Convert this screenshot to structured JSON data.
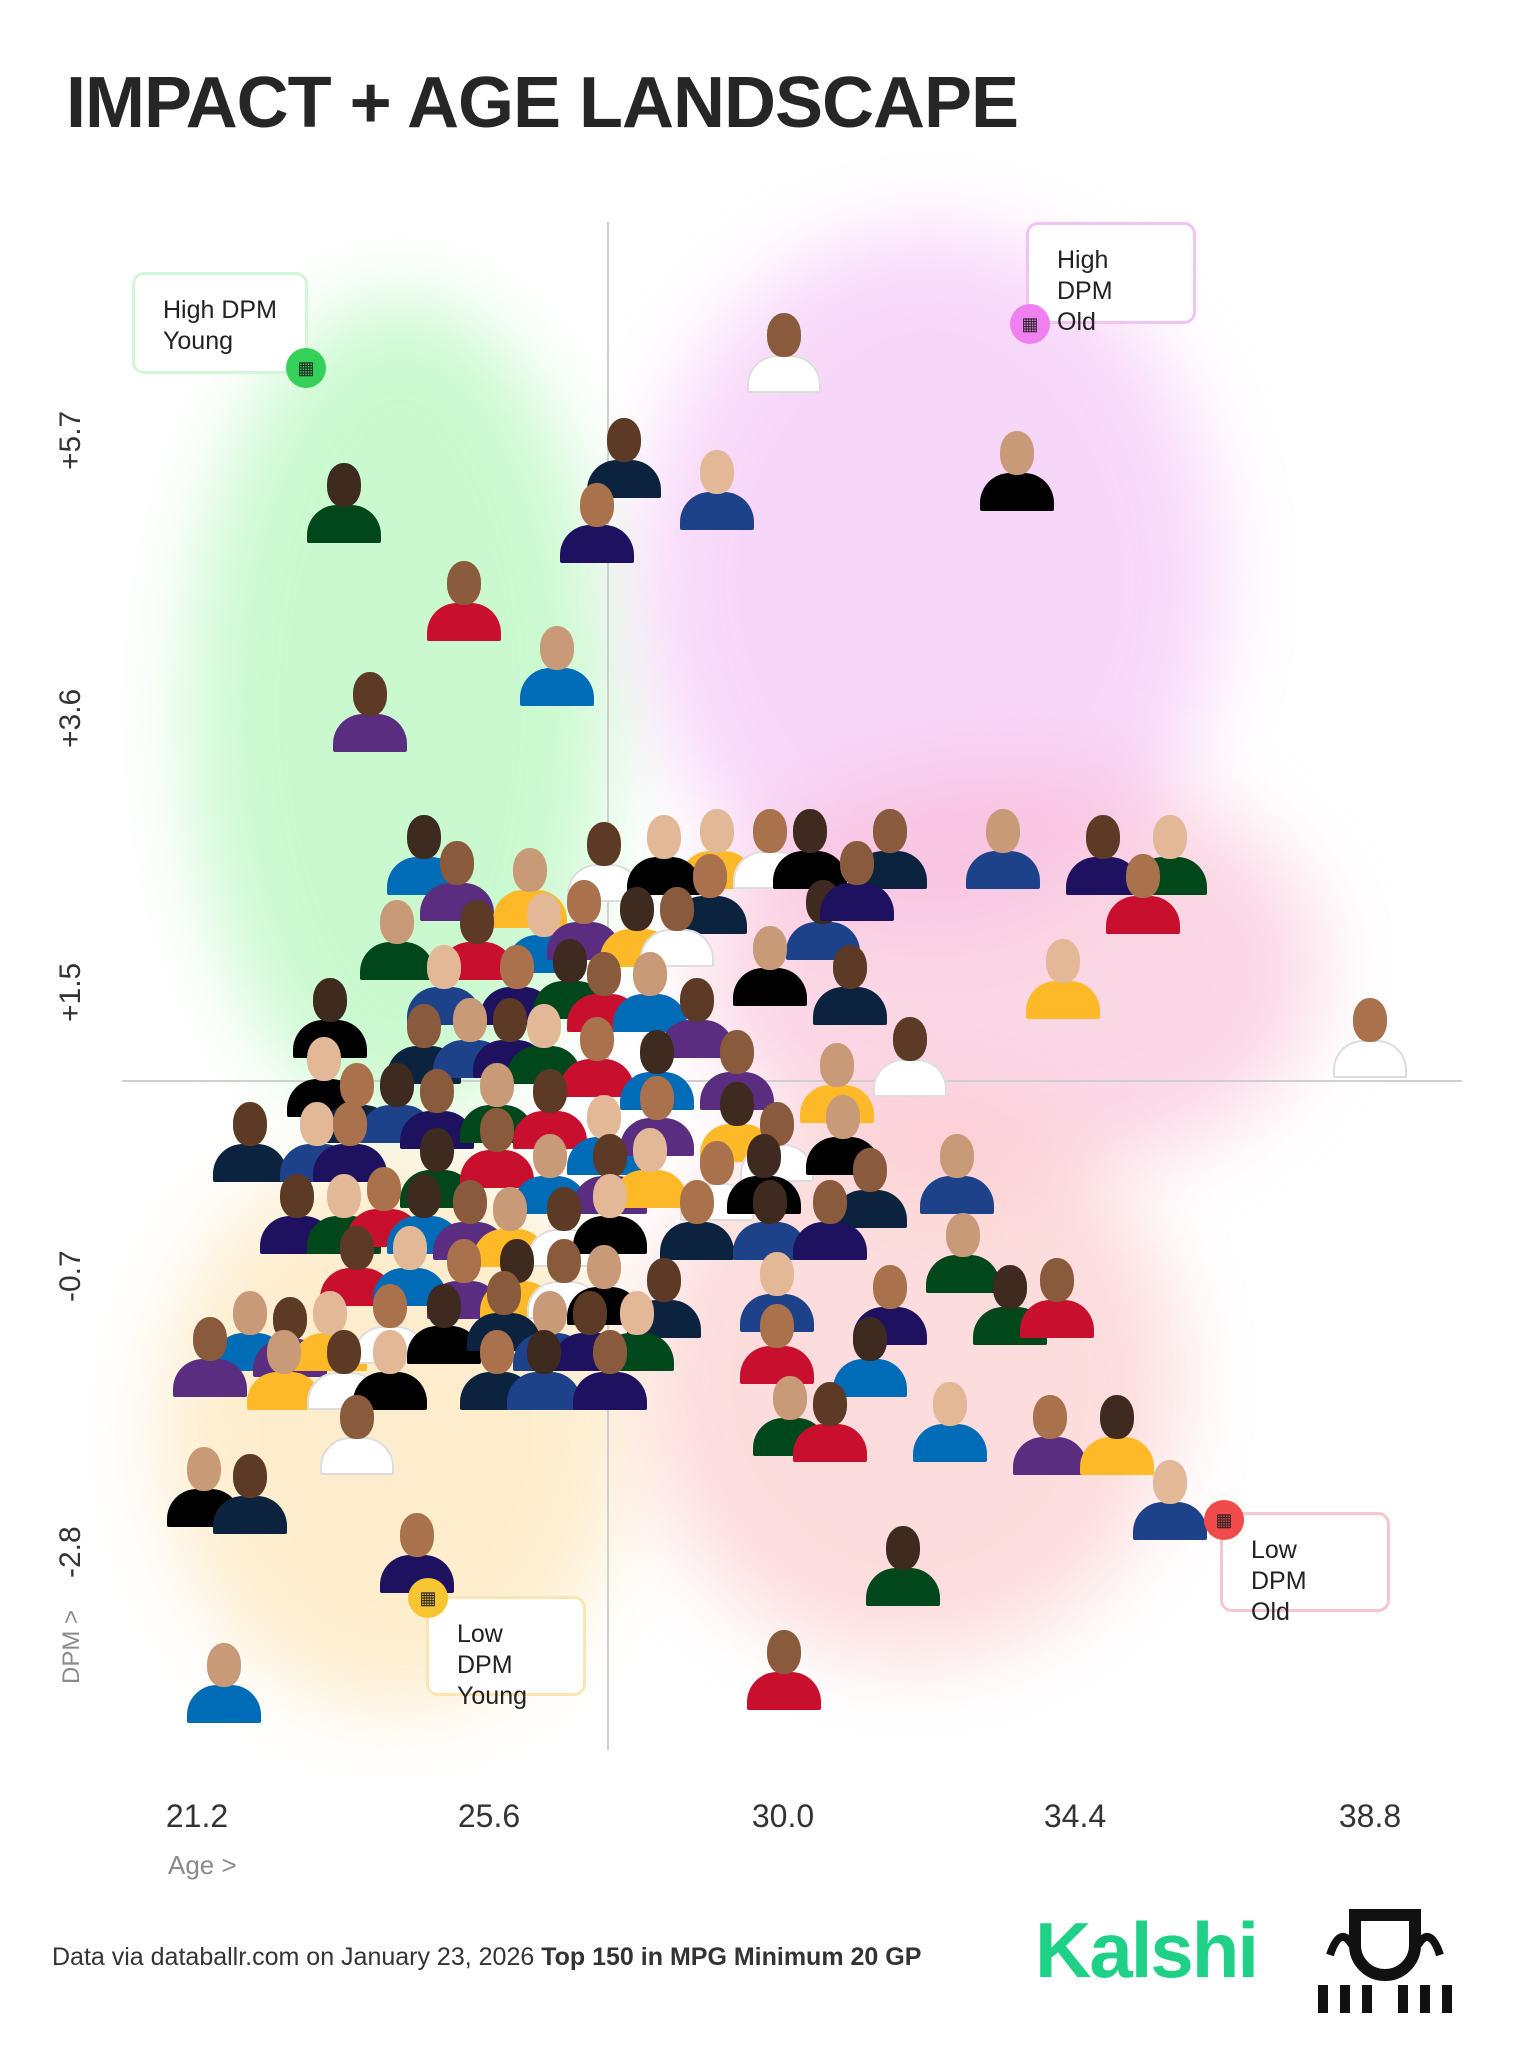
{
  "title": "IMPACT + AGE LANDSCAPE",
  "quadrants": {
    "high_young": {
      "line1": "High DPM",
      "line2": "Young",
      "color": "#34d058"
    },
    "high_old": {
      "line1": "High DPM",
      "line2": "Old",
      "color": "#f07ff0"
    },
    "low_young": {
      "line1": "Low DPM",
      "line2": "Young",
      "color": "#f7c531"
    },
    "low_old": {
      "line1": "Low DPM",
      "line2": "Old",
      "color": "#f04a4a"
    }
  },
  "footer": {
    "source": "Data via databallr.com on January 23, 2026",
    "criteria": "Top 150 in MPG Minimum 20 GP"
  },
  "brand": "Kalshi",
  "chart_data": {
    "type": "scatter",
    "xlabel": "Age >",
    "ylabel": "DPM >",
    "x_ticks": [
      "21.2",
      "25.6",
      "30.0",
      "34.4",
      "38.8"
    ],
    "y_ticks": [
      "+5.7",
      "+3.6",
      "+1.5",
      "-0.7",
      "-2.8"
    ],
    "xlim": [
      19.3,
      40.2
    ],
    "ylim": [
      -4.3,
      6.9
    ],
    "x_divider": 27.5,
    "y_divider": 0.7,
    "points": [
      [
        30.0,
        6.35
      ],
      [
        33.5,
        5.45
      ],
      [
        27.6,
        5.55
      ],
      [
        29.0,
        5.3
      ],
      [
        27.2,
        5.05
      ],
      [
        23.4,
        5.2
      ],
      [
        25.2,
        4.45
      ],
      [
        26.6,
        3.95
      ],
      [
        23.8,
        3.6
      ],
      [
        29.0,
        2.55
      ],
      [
        29.8,
        2.55
      ],
      [
        30.4,
        2.55
      ],
      [
        31.6,
        2.55
      ],
      [
        33.3,
        2.55
      ],
      [
        34.8,
        2.5
      ],
      [
        35.8,
        2.5
      ],
      [
        35.4,
        2.2
      ],
      [
        24.6,
        2.5
      ],
      [
        25.1,
        2.3
      ],
      [
        26.2,
        2.25
      ],
      [
        27.3,
        2.45
      ],
      [
        28.2,
        2.5
      ],
      [
        28.9,
        2.2
      ],
      [
        30.6,
        2.0
      ],
      [
        31.1,
        2.3
      ],
      [
        24.2,
        1.85
      ],
      [
        25.4,
        1.85
      ],
      [
        26.4,
        1.9
      ],
      [
        27.0,
        2.0
      ],
      [
        27.8,
        1.95
      ],
      [
        28.4,
        1.95
      ],
      [
        29.8,
        1.65
      ],
      [
        31.0,
        1.5
      ],
      [
        24.9,
        1.5
      ],
      [
        26.0,
        1.5
      ],
      [
        26.8,
        1.55
      ],
      [
        27.3,
        1.45
      ],
      [
        28.0,
        1.45
      ],
      [
        28.7,
        1.25
      ],
      [
        34.2,
        1.55
      ],
      [
        38.8,
        1.1
      ],
      [
        23.2,
        1.25
      ],
      [
        24.6,
        1.05
      ],
      [
        25.3,
        1.1
      ],
      [
        25.9,
        1.1
      ],
      [
        26.4,
        1.05
      ],
      [
        27.2,
        0.95
      ],
      [
        28.1,
        0.85
      ],
      [
        29.3,
        0.85
      ],
      [
        30.8,
        0.75
      ],
      [
        31.9,
        0.95
      ],
      [
        23.1,
        0.8
      ],
      [
        23.6,
        0.6
      ],
      [
        24.2,
        0.6
      ],
      [
        24.8,
        0.55
      ],
      [
        25.7,
        0.6
      ],
      [
        26.5,
        0.55
      ],
      [
        27.3,
        0.35
      ],
      [
        28.1,
        0.5
      ],
      [
        29.3,
        0.45
      ],
      [
        29.9,
        0.3
      ],
      [
        30.9,
        0.35
      ],
      [
        22.0,
        0.3
      ],
      [
        23.0,
        0.3
      ],
      [
        23.5,
        0.3
      ],
      [
        24.8,
        0.1
      ],
      [
        25.7,
        0.25
      ],
      [
        26.5,
        0.05
      ],
      [
        27.4,
        0.05
      ],
      [
        28.0,
        0.1
      ],
      [
        29.0,
        0.0
      ],
      [
        29.7,
        0.05
      ],
      [
        31.3,
        -0.05
      ],
      [
        32.6,
        0.05
      ],
      [
        22.7,
        -0.25
      ],
      [
        23.4,
        -0.25
      ],
      [
        24.0,
        -0.2
      ],
      [
        24.6,
        -0.25
      ],
      [
        25.3,
        -0.3
      ],
      [
        25.9,
        -0.35
      ],
      [
        26.7,
        -0.35
      ],
      [
        27.4,
        -0.25
      ],
      [
        28.7,
        -0.3
      ],
      [
        29.8,
        -0.3
      ],
      [
        30.7,
        -0.3
      ],
      [
        32.7,
        -0.55
      ],
      [
        23.6,
        -0.65
      ],
      [
        24.4,
        -0.65
      ],
      [
        25.2,
        -0.75
      ],
      [
        26.0,
        -0.75
      ],
      [
        26.7,
        -0.75
      ],
      [
        27.3,
        -0.8
      ],
      [
        28.2,
        -0.9
      ],
      [
        29.9,
        -0.85
      ],
      [
        31.6,
        -0.95
      ],
      [
        33.4,
        -0.95
      ],
      [
        34.1,
        -0.9
      ],
      [
        22.0,
        -1.15
      ],
      [
        22.6,
        -1.2
      ],
      [
        23.2,
        -1.15
      ],
      [
        24.1,
        -1.1
      ],
      [
        24.9,
        -1.1
      ],
      [
        25.8,
        -1.0
      ],
      [
        26.5,
        -1.15
      ],
      [
        27.1,
        -1.15
      ],
      [
        27.8,
        -1.15
      ],
      [
        29.9,
        -1.25
      ],
      [
        31.3,
        -1.35
      ],
      [
        21.4,
        -1.35
      ],
      [
        22.5,
        -1.45
      ],
      [
        23.4,
        -1.45
      ],
      [
        24.1,
        -1.45
      ],
      [
        25.7,
        -1.45
      ],
      [
        26.4,
        -1.45
      ],
      [
        27.4,
        -1.45
      ],
      [
        30.1,
        -1.8
      ],
      [
        30.7,
        -1.85
      ],
      [
        32.5,
        -1.85
      ],
      [
        34.0,
        -1.95
      ],
      [
        35.0,
        -1.95
      ],
      [
        23.6,
        -1.95
      ],
      [
        21.3,
        -2.35
      ],
      [
        22.0,
        -2.4
      ],
      [
        35.8,
        -2.45
      ],
      [
        24.5,
        -2.85
      ],
      [
        31.8,
        -2.95
      ],
      [
        30.0,
        -3.75
      ],
      [
        21.6,
        -3.85
      ]
    ]
  }
}
